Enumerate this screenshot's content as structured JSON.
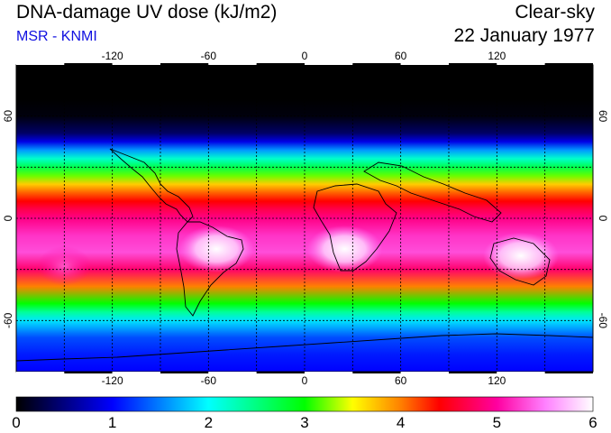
{
  "header": {
    "title": "DNA-damage UV dose (kJ/m2)",
    "source": "MSR - KNMI",
    "condition": "Clear-sky",
    "date": "22 January 1977"
  },
  "map": {
    "lon_range": [
      -180,
      180
    ],
    "lat_range": [
      -90,
      90
    ],
    "lon_ticks": [
      "-120",
      "-60",
      "0",
      "60",
      "120"
    ],
    "lat_ticks": [
      "60",
      "0",
      "-60"
    ],
    "lon_grid_step_deg": 30,
    "lat_grid_step_deg": 30,
    "grid": "dashed",
    "colors": {
      "coastline": "#000000",
      "grid": "#000000"
    }
  },
  "colorbar": {
    "min": 0,
    "max": 6,
    "labels": [
      "0",
      "1",
      "2",
      "3",
      "4",
      "5",
      "6"
    ],
    "stops": [
      {
        "value": 0.0,
        "color": "#000000"
      },
      {
        "value": 0.5,
        "color": "#000080"
      },
      {
        "value": 1.0,
        "color": "#0000ff"
      },
      {
        "value": 1.5,
        "color": "#0080ff"
      },
      {
        "value": 2.0,
        "color": "#00ffff"
      },
      {
        "value": 2.5,
        "color": "#00ff80"
      },
      {
        "value": 3.0,
        "color": "#00ff00"
      },
      {
        "value": 3.5,
        "color": "#ffff00"
      },
      {
        "value": 4.0,
        "color": "#ff8000"
      },
      {
        "value": 4.4,
        "color": "#ff0000"
      },
      {
        "value": 5.0,
        "color": "#ff00a0"
      },
      {
        "value": 5.5,
        "color": "#ff80ff"
      },
      {
        "value": 6.0,
        "color": "#ffffff"
      }
    ]
  },
  "zonal_profile": [
    {
      "lat": 90,
      "value": 0.0
    },
    {
      "lat": 70,
      "value": 0.0
    },
    {
      "lat": 60,
      "value": 0.05
    },
    {
      "lat": 50,
      "value": 0.4
    },
    {
      "lat": 45,
      "value": 0.9
    },
    {
      "lat": 40,
      "value": 1.6
    },
    {
      "lat": 35,
      "value": 2.2
    },
    {
      "lat": 30,
      "value": 2.7
    },
    {
      "lat": 25,
      "value": 3.2
    },
    {
      "lat": 20,
      "value": 3.7
    },
    {
      "lat": 15,
      "value": 4.1
    },
    {
      "lat": 10,
      "value": 4.4
    },
    {
      "lat": 5,
      "value": 4.7
    },
    {
      "lat": 0,
      "value": 4.9
    },
    {
      "lat": -10,
      "value": 5.2
    },
    {
      "lat": -20,
      "value": 5.3
    },
    {
      "lat": -30,
      "value": 4.8
    },
    {
      "lat": -40,
      "value": 4.0
    },
    {
      "lat": -50,
      "value": 3.0
    },
    {
      "lat": -55,
      "value": 2.4
    },
    {
      "lat": -60,
      "value": 1.9
    },
    {
      "lat": -70,
      "value": 1.3
    },
    {
      "lat": -80,
      "value": 1.1
    },
    {
      "lat": -90,
      "value": 1.0
    }
  ],
  "hotspots": [
    {
      "name": "Africa",
      "lon": 25,
      "lat": -18,
      "value": 6.0
    },
    {
      "name": "Australia",
      "lon": 135,
      "lat": -22,
      "value": 6.0
    },
    {
      "name": "South America",
      "lon": -55,
      "lat": -18,
      "value": 5.8
    },
    {
      "name": "South Pacific",
      "lon": -150,
      "lat": -28,
      "value": 5.4
    }
  ]
}
